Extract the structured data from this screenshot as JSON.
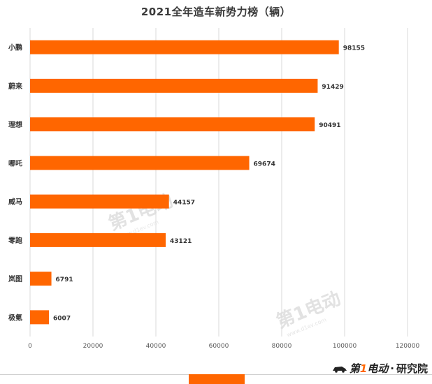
{
  "chart_data": {
    "type": "bar",
    "orientation": "horizontal",
    "title": "2021全年造车新势力榜（辆）",
    "categories": [
      "小鹏",
      "蔚来",
      "理想",
      "哪吒",
      "威马",
      "零跑",
      "岚图",
      "极氪"
    ],
    "values": [
      98155,
      91429,
      90491,
      69674,
      44157,
      43121,
      6791,
      6007
    ],
    "data_labels": [
      "98155",
      "91429",
      "90491",
      "69674",
      "44157",
      "43121",
      "6791",
      "6007"
    ],
    "xlim": [
      0,
      120000
    ],
    "x_ticks": [
      "0",
      "20000",
      "40000",
      "60000",
      "80000",
      "100000",
      "120000"
    ],
    "x_tick_values": [
      0,
      20000,
      40000,
      60000,
      80000,
      100000,
      120000
    ],
    "grid": "vertical",
    "legend": "bottom",
    "bar_color": "#ff6600"
  },
  "watermark": {
    "brand": "第1电动",
    "sub": "www.d1ev.com"
  },
  "footer": {
    "brand_prefix": "第",
    "brand_one": "1",
    "brand_suffix": "电动",
    "separator": "·",
    "research": "研究院"
  }
}
